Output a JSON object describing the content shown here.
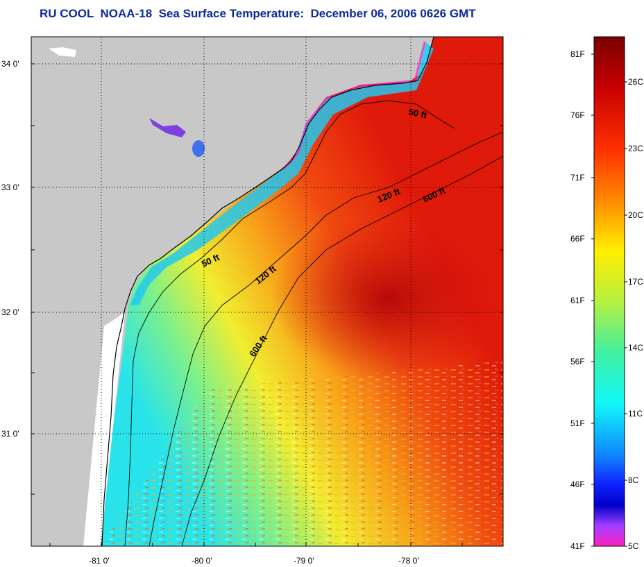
{
  "title": "RU COOL  NOAA-18  Sea Surface Temperature:  December 06, 2006 0626 GMT",
  "latitude_labels": [
    "34 0'",
    "33 0'",
    "32 0'",
    "31 0'"
  ],
  "longitude_labels": [
    "-81 0'",
    "-80 0'",
    "-79 0'",
    "-78 0'"
  ],
  "contour_labels": [
    {
      "id": "c50a",
      "text": "50 ft"
    },
    {
      "id": "c50b",
      "text": "50 ft"
    },
    {
      "id": "c120a",
      "text": "120 ft"
    },
    {
      "id": "c120b",
      "text": "120 ft"
    },
    {
      "id": "c600a",
      "text": "600 ft"
    },
    {
      "id": "c600b",
      "text": "600 ft"
    }
  ],
  "colorbar": {
    "fahrenheit": [
      "81F",
      "76F",
      "71F",
      "66F",
      "61F",
      "56F",
      "51F",
      "46F",
      "41F"
    ],
    "celsius": [
      "26C",
      "23C",
      "20C",
      "17C",
      "14C",
      "11C",
      "8C",
      "5C"
    ]
  },
  "colors": {
    "land": "#c8c8c8",
    "title": "#0d2a9a",
    "warm": "#e61e0a",
    "cool": "#20e8e8",
    "coastline": "#000000"
  }
}
